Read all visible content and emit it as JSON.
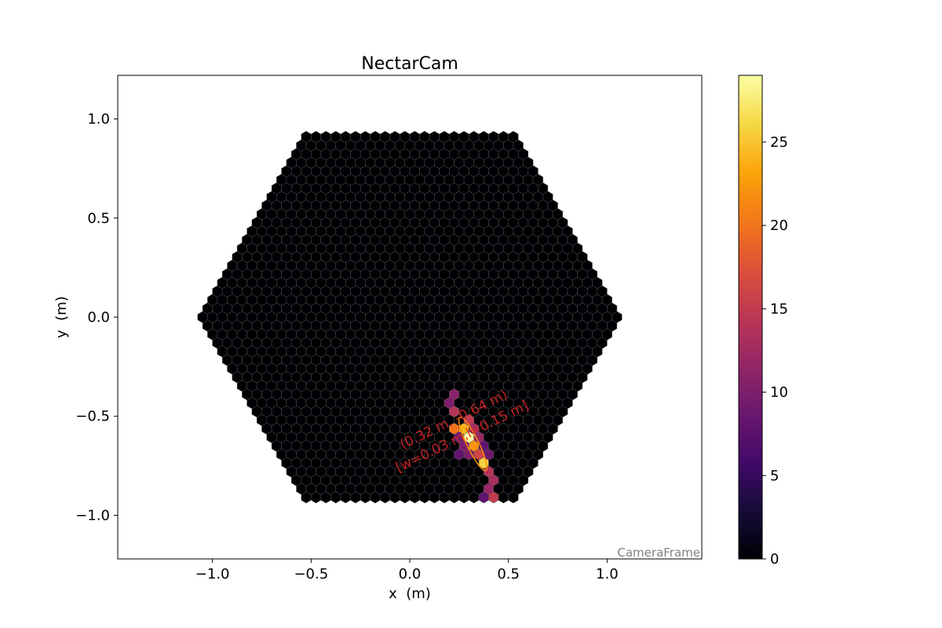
{
  "chart_data": {
    "type": "heatmap",
    "title": "NectarCam",
    "xlabel": "x  (m)",
    "ylabel": "y  (m)",
    "xlim": [
      -1.48,
      1.48
    ],
    "ylim": [
      -1.22,
      1.22
    ],
    "x_ticks": [
      {
        "value": -1.0,
        "label": "−1.0"
      },
      {
        "value": -0.5,
        "label": "−0.5"
      },
      {
        "value": 0.0,
        "label": "0.0"
      },
      {
        "value": 0.5,
        "label": "0.5"
      },
      {
        "value": 1.0,
        "label": "1.0"
      }
    ],
    "y_ticks": [
      {
        "value": -1.0,
        "label": "−1.0"
      },
      {
        "value": -0.5,
        "label": "−0.5"
      },
      {
        "value": 0.0,
        "label": "0.0"
      },
      {
        "value": 0.5,
        "label": "0.5"
      },
      {
        "value": 1.0,
        "label": "1.0"
      }
    ],
    "camera": {
      "hex_radius_m": 1.08,
      "pixel_pitch_m": 0.05,
      "pixel_color": "#000004",
      "pixel_edge_color": "#555555"
    },
    "colorbar": {
      "colormap": "inferno",
      "range": [
        0,
        29
      ],
      "ticks": [
        {
          "value": 0,
          "label": "0"
        },
        {
          "value": 5,
          "label": "5"
        },
        {
          "value": 10,
          "label": "10"
        },
        {
          "value": 15,
          "label": "15"
        },
        {
          "value": 20,
          "label": "20"
        },
        {
          "value": 25,
          "label": "25"
        }
      ]
    },
    "bright_pixels": [
      {
        "x": 0.21,
        "y": -0.39,
        "v": 11
      },
      {
        "x": 0.22,
        "y": -0.44,
        "v": 10
      },
      {
        "x": 0.23,
        "y": -0.48,
        "v": 14
      },
      {
        "x": 0.28,
        "y": -0.51,
        "v": 15
      },
      {
        "x": 0.23,
        "y": -0.54,
        "v": 20
      },
      {
        "x": 0.27,
        "y": -0.56,
        "v": 24
      },
      {
        "x": 0.32,
        "y": -0.57,
        "v": 13
      },
      {
        "x": 0.24,
        "y": -0.59,
        "v": 9
      },
      {
        "x": 0.29,
        "y": -0.6,
        "v": 29
      },
      {
        "x": 0.33,
        "y": -0.62,
        "v": 12
      },
      {
        "x": 0.27,
        "y": -0.64,
        "v": 10
      },
      {
        "x": 0.31,
        "y": -0.65,
        "v": 22
      },
      {
        "x": 0.38,
        "y": -0.64,
        "v": 8
      },
      {
        "x": 0.26,
        "y": -0.68,
        "v": 8
      },
      {
        "x": 0.35,
        "y": -0.68,
        "v": 16
      },
      {
        "x": 0.39,
        "y": -0.69,
        "v": 9
      },
      {
        "x": 0.31,
        "y": -0.7,
        "v": 10
      },
      {
        "x": 0.36,
        "y": -0.72,
        "v": 26
      },
      {
        "x": 0.4,
        "y": -0.79,
        "v": 14
      },
      {
        "x": 0.41,
        "y": -0.84,
        "v": 13
      },
      {
        "x": 0.39,
        "y": -0.86,
        "v": 12
      },
      {
        "x": 0.44,
        "y": -0.89,
        "v": 15
      },
      {
        "x": 0.39,
        "y": -0.91,
        "v": 8
      },
      {
        "x": 0.44,
        "y": -0.93,
        "v": 9
      }
    ],
    "hillas_ellipse": {
      "x": 0.32,
      "y": -0.64,
      "width": 0.03,
      "length": 0.15,
      "angle_deg": -64,
      "color": "#ff8c00"
    },
    "annotation_lines": [
      "(0.32 m, -0.64 m)",
      "[w=0.03 m,l=0.15 m]"
    ],
    "annotation_color": "#d62728",
    "frame_label": "CameraFrame"
  }
}
